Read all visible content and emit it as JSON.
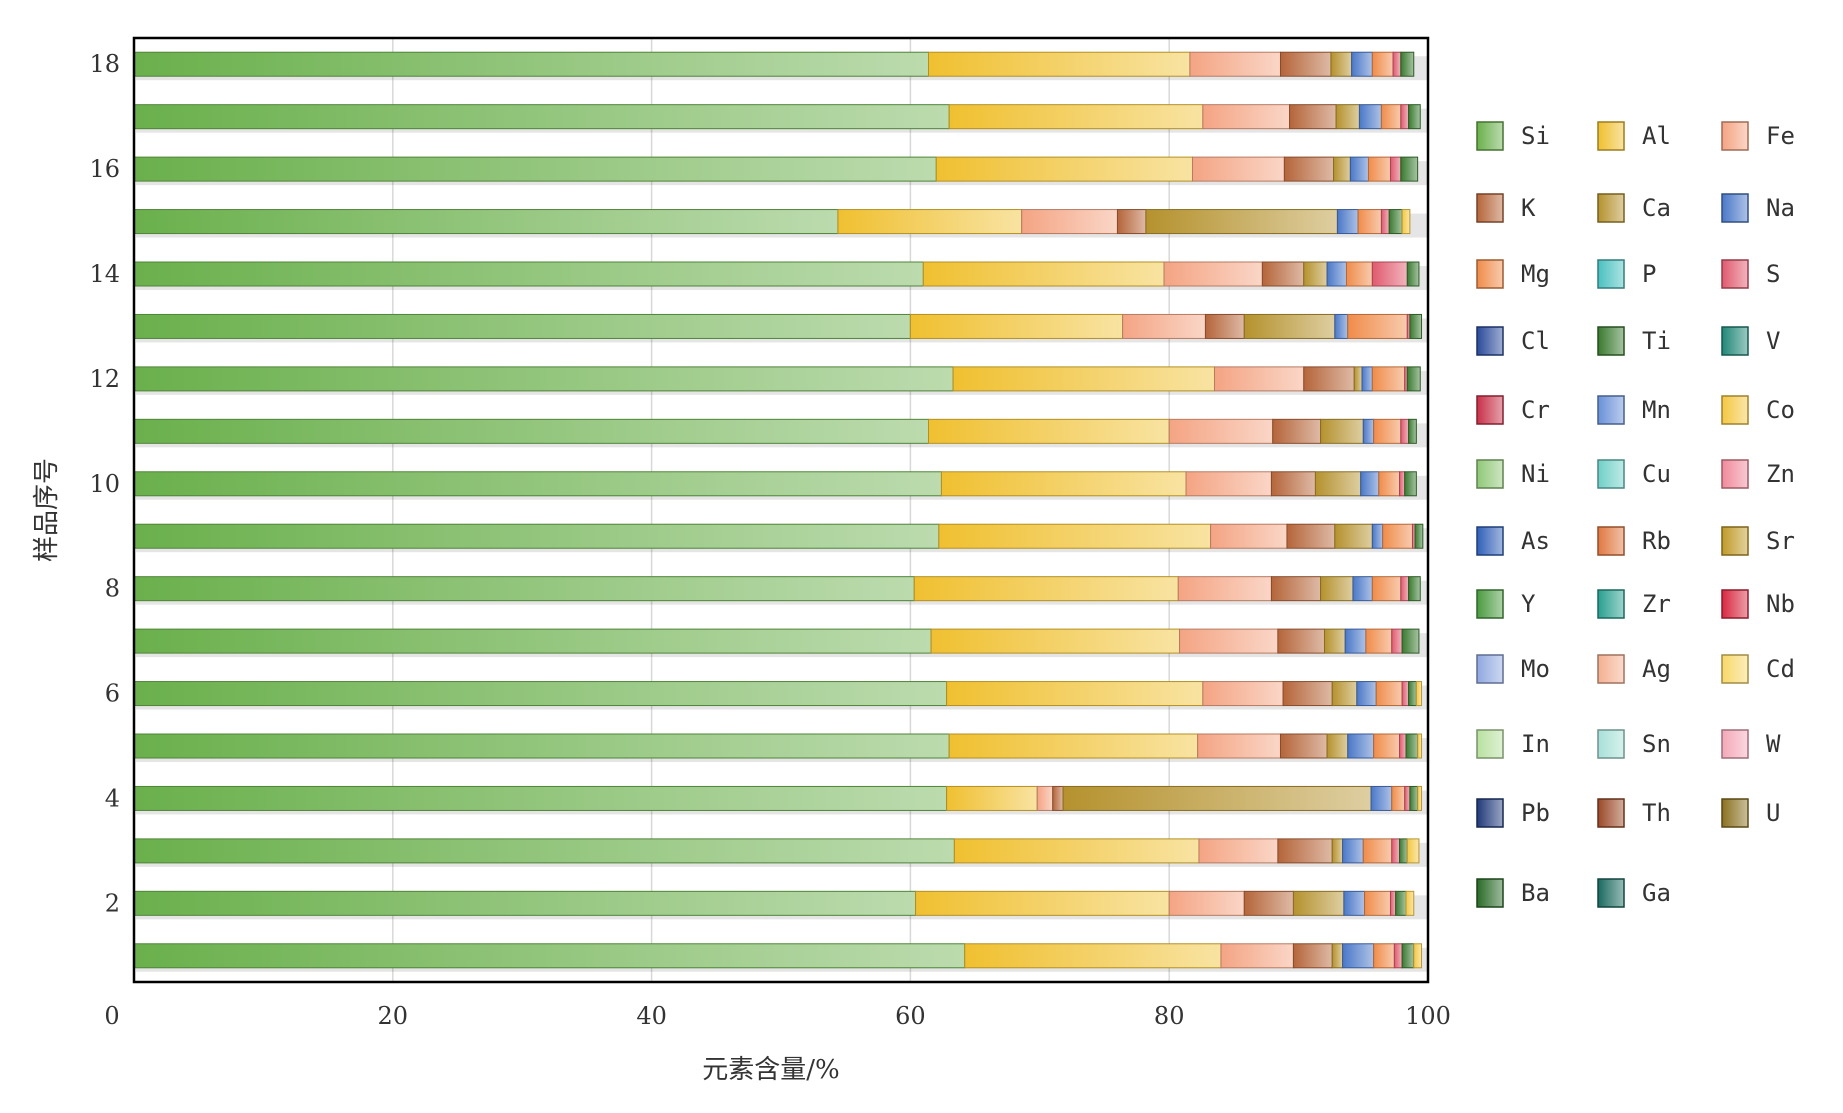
{
  "chart_data": {
    "type": "bar",
    "stacked": true,
    "orientation": "horizontal",
    "title": "",
    "xlabel": "元素含量/%",
    "ylabel": "样品序号",
    "xlim": [
      0,
      100
    ],
    "xticks": [
      0,
      20,
      40,
      60,
      80,
      100
    ],
    "yticks": [
      2,
      4,
      6,
      8,
      10,
      12,
      14,
      16,
      18
    ],
    "grid": "vertical",
    "legend_position": "right",
    "legend_columns": 3,
    "categories": [
      1,
      2,
      3,
      4,
      5,
      6,
      7,
      8,
      9,
      10,
      11,
      12,
      13,
      14,
      15,
      16,
      17,
      18
    ],
    "series": [
      {
        "name": "Si",
        "color": "#6ab04c",
        "values": [
          64.2,
          60.4,
          63.4,
          62.8,
          63.0,
          62.8,
          61.6,
          60.3,
          62.2,
          62.4,
          61.4,
          63.3,
          60.0,
          61.0,
          54.4,
          62.0,
          63.0,
          61.4
        ]
      },
      {
        "name": "Al",
        "color": "#f0c030",
        "values": [
          19.8,
          19.6,
          18.9,
          7.0,
          19.2,
          19.8,
          19.2,
          20.4,
          21.0,
          18.9,
          18.6,
          20.2,
          16.4,
          18.6,
          14.2,
          19.8,
          19.6,
          20.2
        ]
      },
      {
        "name": "Fe",
        "color": "#f4a483",
        "values": [
          5.6,
          5.8,
          6.1,
          1.2,
          6.4,
          6.2,
          7.6,
          7.2,
          5.9,
          6.6,
          8.0,
          6.9,
          6.4,
          7.6,
          7.4,
          7.1,
          6.7,
          7.0
        ]
      },
      {
        "name": "K",
        "color": "#b5653a",
        "values": [
          3.0,
          3.8,
          4.2,
          0.8,
          3.6,
          3.8,
          3.6,
          3.8,
          3.7,
          3.4,
          3.7,
          3.9,
          3.0,
          3.2,
          2.2,
          3.8,
          3.6,
          3.9
        ]
      },
      {
        "name": "Ca",
        "color": "#b5922e",
        "values": [
          0.8,
          3.9,
          0.8,
          23.8,
          1.6,
          1.9,
          1.6,
          2.5,
          2.9,
          3.5,
          3.3,
          0.6,
          7.0,
          1.8,
          14.8,
          1.3,
          1.8,
          1.6
        ]
      },
      {
        "name": "Na",
        "color": "#4a78c8",
        "values": [
          2.4,
          1.6,
          1.6,
          1.6,
          2.0,
          1.5,
          1.6,
          1.5,
          0.8,
          1.4,
          0.8,
          0.8,
          1.0,
          1.5,
          1.6,
          1.4,
          1.7,
          1.6
        ]
      },
      {
        "name": "Mg",
        "color": "#f08c4a",
        "values": [
          1.6,
          2.0,
          2.2,
          1.0,
          2.0,
          2.0,
          2.0,
          2.2,
          2.3,
          1.6,
          2.1,
          2.5,
          4.6,
          2.0,
          1.8,
          1.7,
          1.5,
          1.6
        ]
      },
      {
        "name": "P",
        "color": "#4ac0c0",
        "values": [
          0,
          0,
          0,
          0,
          0,
          0,
          0,
          0,
          0,
          0,
          0,
          0,
          0,
          0,
          0,
          0,
          0,
          0
        ]
      },
      {
        "name": "S",
        "color": "#e05a6e",
        "values": [
          0.6,
          0.4,
          0.6,
          0.4,
          0.5,
          0.5,
          0.8,
          0.6,
          0.2,
          0.4,
          0.6,
          0.2,
          0.2,
          2.7,
          0.6,
          0.8,
          0.6,
          0.6
        ]
      },
      {
        "name": "Cl",
        "color": "#2a4a9a",
        "values": [
          0,
          0,
          0,
          0,
          0,
          0,
          0,
          0,
          0,
          0,
          0,
          0,
          0,
          0,
          0,
          0,
          0,
          0
        ]
      },
      {
        "name": "Ti",
        "color": "#3a7a30",
        "values": [
          0.9,
          0.8,
          0.6,
          0.6,
          0.9,
          0.6,
          1.3,
          0.9,
          0.6,
          0.9,
          0.6,
          1.0,
          0.9,
          0.9,
          1.0,
          1.3,
          0.9,
          1.0
        ]
      },
      {
        "name": "V",
        "color": "#208878",
        "values": [
          0,
          0,
          0,
          0,
          0,
          0,
          0,
          0,
          0,
          0,
          0,
          0,
          0,
          0,
          0,
          0,
          0,
          0
        ]
      },
      {
        "name": "Cr",
        "color": "#c83048",
        "values": [
          0,
          0,
          0,
          0,
          0,
          0,
          0,
          0,
          0,
          0,
          0,
          0,
          0,
          0,
          0,
          0,
          0,
          0
        ]
      },
      {
        "name": "Mn",
        "color": "#6a90d8",
        "values": [
          0,
          0,
          0,
          0,
          0,
          0,
          0,
          0,
          0,
          0,
          0,
          0,
          0,
          0,
          0,
          0,
          0,
          0
        ]
      },
      {
        "name": "Co",
        "color": "#f4c842",
        "values": [
          0.6,
          0.6,
          0.9,
          0.3,
          0.3,
          0.4,
          0,
          0,
          0,
          0,
          0,
          0,
          0,
          0,
          0.6,
          0,
          0,
          0
        ]
      },
      {
        "name": "Ni",
        "color": "#90c878",
        "values": [
          0,
          0,
          0,
          0,
          0,
          0,
          0,
          0,
          0,
          0,
          0,
          0,
          0,
          0,
          0,
          0,
          0,
          0
        ]
      },
      {
        "name": "Cu",
        "color": "#70d0c8",
        "values": [
          0,
          0,
          0,
          0,
          0,
          0,
          0,
          0,
          0,
          0,
          0,
          0,
          0,
          0,
          0,
          0,
          0,
          0
        ]
      },
      {
        "name": "Zn",
        "color": "#f08a9a",
        "values": [
          0,
          0,
          0,
          0,
          0,
          0,
          0,
          0,
          0,
          0,
          0,
          0,
          0,
          0,
          0,
          0,
          0,
          0
        ]
      },
      {
        "name": "As",
        "color": "#3060b8",
        "values": [
          0,
          0,
          0,
          0,
          0,
          0,
          0,
          0,
          0,
          0,
          0,
          0,
          0,
          0,
          0,
          0,
          0,
          0
        ]
      },
      {
        "name": "Rb",
        "color": "#e07840",
        "values": [
          0,
          0,
          0,
          0,
          0,
          0,
          0,
          0,
          0,
          0,
          0,
          0,
          0,
          0,
          0,
          0,
          0,
          0
        ]
      },
      {
        "name": "Sr",
        "color": "#c09a28",
        "values": [
          0,
          0,
          0,
          0,
          0,
          0,
          0,
          0,
          0,
          0,
          0,
          0,
          0,
          0,
          0,
          0,
          0,
          0
        ]
      },
      {
        "name": "Y",
        "color": "#4a9a40",
        "values": [
          0,
          0,
          0,
          0,
          0,
          0,
          0,
          0,
          0,
          0,
          0,
          0,
          0,
          0,
          0,
          0,
          0,
          0
        ]
      },
      {
        "name": "Zr",
        "color": "#28a090",
        "values": [
          0,
          0,
          0,
          0,
          0,
          0,
          0,
          0,
          0,
          0,
          0,
          0,
          0,
          0,
          0,
          0,
          0,
          0
        ]
      },
      {
        "name": "Nb",
        "color": "#d82840",
        "values": [
          0,
          0,
          0,
          0,
          0,
          0,
          0,
          0,
          0,
          0,
          0,
          0,
          0,
          0,
          0,
          0,
          0,
          0
        ]
      },
      {
        "name": "Mo",
        "color": "#90a8e0",
        "values": [
          0,
          0,
          0,
          0,
          0,
          0,
          0,
          0,
          0,
          0,
          0,
          0,
          0,
          0,
          0,
          0,
          0,
          0
        ]
      },
      {
        "name": "Ag",
        "color": "#f4b090",
        "values": [
          0,
          0,
          0,
          0,
          0,
          0,
          0,
          0,
          0,
          0,
          0,
          0,
          0,
          0,
          0,
          0,
          0,
          0
        ]
      },
      {
        "name": "Cd",
        "color": "#f8d868",
        "values": [
          0,
          0,
          0,
          0,
          0,
          0,
          0,
          0,
          0,
          0,
          0,
          0,
          0,
          0,
          0,
          0,
          0,
          0
        ]
      },
      {
        "name": "In",
        "color": "#b8e0a0",
        "values": [
          0,
          0,
          0,
          0,
          0,
          0,
          0,
          0,
          0,
          0,
          0,
          0,
          0,
          0,
          0,
          0,
          0,
          0
        ]
      },
      {
        "name": "Sn",
        "color": "#a8e0d8",
        "values": [
          0,
          0,
          0,
          0,
          0,
          0,
          0,
          0,
          0,
          0,
          0,
          0,
          0,
          0,
          0,
          0,
          0,
          0
        ]
      },
      {
        "name": "W",
        "color": "#f4a8b8",
        "values": [
          0,
          0,
          0,
          0,
          0,
          0,
          0,
          0,
          0,
          0,
          0,
          0,
          0,
          0,
          0,
          0,
          0,
          0
        ]
      },
      {
        "name": "Pb",
        "color": "#203a7a",
        "values": [
          0,
          0,
          0,
          0,
          0,
          0,
          0,
          0,
          0,
          0,
          0,
          0,
          0,
          0,
          0,
          0,
          0,
          0
        ]
      },
      {
        "name": "Th",
        "color": "#9a4a28",
        "values": [
          0,
          0,
          0,
          0,
          0,
          0,
          0,
          0,
          0,
          0,
          0,
          0,
          0,
          0,
          0,
          0,
          0,
          0
        ]
      },
      {
        "name": "U",
        "color": "#8a7020",
        "values": [
          0,
          0,
          0,
          0,
          0,
          0,
          0,
          0,
          0,
          0,
          0,
          0,
          0,
          0,
          0,
          0,
          0,
          0
        ]
      },
      {
        "name": "Ba",
        "color": "#2a6a28",
        "values": [
          0,
          0,
          0,
          0,
          0,
          0,
          0,
          0,
          0,
          0,
          0,
          0,
          0,
          0,
          0,
          0,
          0,
          0
        ]
      },
      {
        "name": "Ga",
        "color": "#1a6a60",
        "values": [
          0,
          0,
          0,
          0,
          0,
          0,
          0,
          0,
          0,
          0,
          0,
          0,
          0,
          0,
          0,
          0,
          0,
          0
        ]
      }
    ]
  }
}
